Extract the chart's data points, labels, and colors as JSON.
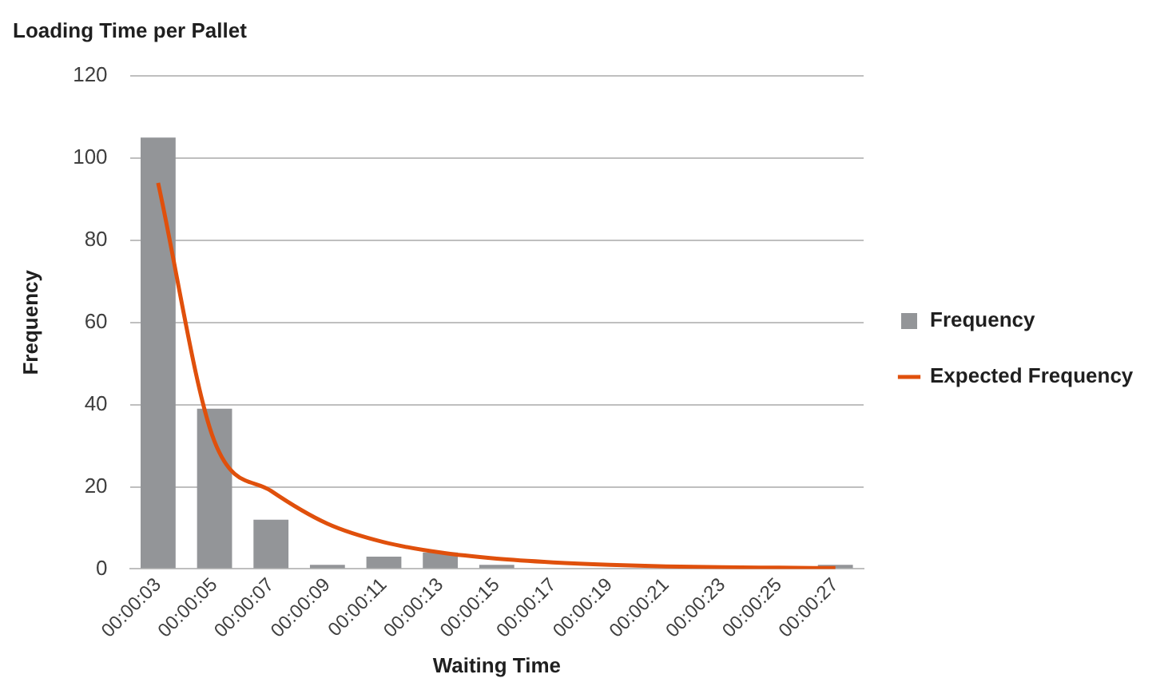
{
  "chart_data": {
    "type": "bar",
    "title": "Loading Time per Pallet",
    "xlabel": "Waiting Time",
    "ylabel": "Frequency",
    "categories": [
      "00:00:03",
      "00:00:05",
      "00:00:07",
      "00:00:09",
      "00:00:11",
      "00:00:13",
      "00:00:15",
      "00:00:17",
      "00:00:19",
      "00:00:21",
      "00:00:23",
      "00:00:25",
      "00:00:27"
    ],
    "series": [
      {
        "name": "Frequency",
        "color": "#939598",
        "values": [
          105,
          39,
          12,
          1,
          3,
          4,
          1,
          0,
          0,
          0,
          0,
          0,
          1
        ]
      },
      {
        "name": "Expected Frequency",
        "type": "line",
        "color": "#e0500c",
        "values": [
          94,
          31,
          19,
          11,
          6.5,
          4,
          2.5,
          1.6,
          1,
          0.6,
          0.4,
          0.3,
          0.2
        ]
      }
    ],
    "ylim": [
      0,
      120
    ],
    "yticks": [
      0,
      20,
      40,
      60,
      80,
      100,
      120
    ],
    "grid": "y",
    "legend": "right",
    "marker": "none"
  }
}
